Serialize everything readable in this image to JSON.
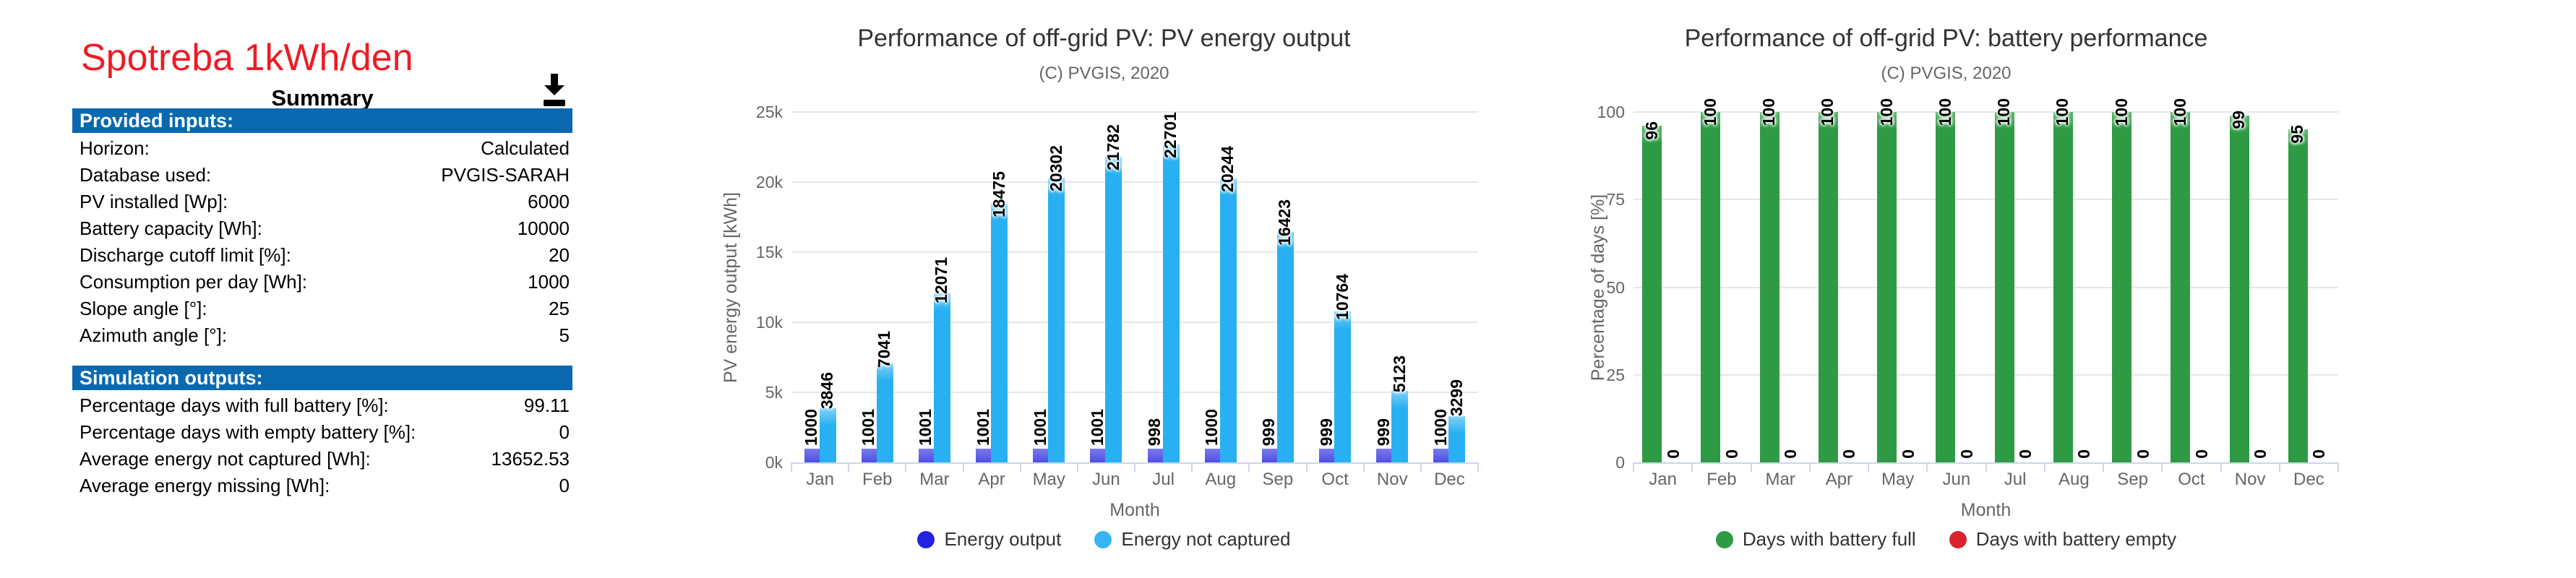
{
  "page": {
    "title": "Spotreba 1kWh/den",
    "title_color": "#ed1c24"
  },
  "summary_panel": {
    "title": "Summary",
    "download_icon": "download-icon",
    "header_bg": "#0a69ae",
    "sections": [
      {
        "header": "Provided inputs:",
        "rows": [
          {
            "label": "Horizon:",
            "value": "Calculated"
          },
          {
            "label": "Database used:",
            "value": "PVGIS-SARAH"
          },
          {
            "label": "PV installed [Wp]:",
            "value": "6000"
          },
          {
            "label": "Battery capacity [Wh]:",
            "value": "10000"
          },
          {
            "label": "Discharge cutoff limit [%]:",
            "value": "20"
          },
          {
            "label": "Consumption per day [Wh]:",
            "value": "1000"
          },
          {
            "label": "Slope angle [°]:",
            "value": "25"
          },
          {
            "label": "Azimuth angle [°]:",
            "value": "5"
          }
        ]
      },
      {
        "header": "Simulation outputs:",
        "rows": [
          {
            "label": "Percentage days with full battery [%]:",
            "value": "99.11"
          },
          {
            "label": "Percentage days with empty battery [%]:",
            "value": "0"
          },
          {
            "label": "Average energy not captured [Wh]:",
            "value": "13652.53"
          },
          {
            "label": "Average energy missing [Wh]:",
            "value": "0"
          }
        ]
      }
    ]
  },
  "chart_data": [
    {
      "type": "bar",
      "title": "Performance of off-grid PV: PV energy output",
      "subtitle": "(C) PVGIS, 2020",
      "categories": [
        "Jan",
        "Feb",
        "Mar",
        "Apr",
        "May",
        "Jun",
        "Jul",
        "Aug",
        "Sep",
        "Oct",
        "Nov",
        "Dec"
      ],
      "series": [
        {
          "name": "Energy output",
          "color": "#2222e0",
          "bar_top": "#7a7aef",
          "bar_bottom": "#4343dd",
          "values": [
            1000,
            1001,
            1001,
            1001,
            1001,
            1001,
            998,
            1000,
            999,
            999,
            999,
            1000
          ]
        },
        {
          "name": "Energy not captured",
          "color": "#38b4f4",
          "bar_top": "#7fd0f8",
          "bar_bottom": "#29b0f2",
          "values": [
            3846,
            7041,
            12071,
            18475,
            20302,
            21782,
            22701,
            20244,
            16423,
            10764,
            5123,
            3299
          ]
        }
      ],
      "xlabel": "Month",
      "ylabel": "PV energy output [kWh]",
      "ylim": [
        0,
        25000
      ],
      "ytick_values": [
        0,
        5000,
        10000,
        15000,
        20000,
        25000
      ],
      "ytick_labels": [
        "0k",
        "5k",
        "10k",
        "15k",
        "20k",
        "25k"
      ],
      "grid": true,
      "legend_position": "bottom",
      "data_labels_rotated": true
    },
    {
      "type": "bar",
      "title": "Performance of off-grid PV: battery performance",
      "subtitle": "(C) PVGIS, 2020",
      "categories": [
        "Jan",
        "Feb",
        "Mar",
        "Apr",
        "May",
        "Jun",
        "Jul",
        "Aug",
        "Sep",
        "Oct",
        "Nov",
        "Dec"
      ],
      "series": [
        {
          "name": "Days with battery full",
          "color": "#2e9b44",
          "bar_top": "#58b66b",
          "bar_bottom": "#2e9b44",
          "values": [
            96,
            100,
            100,
            100,
            100,
            100,
            100,
            100,
            100,
            100,
            99,
            95
          ]
        },
        {
          "name": "Days with battery empty",
          "color": "#d9222a",
          "bar_top": "#e4555b",
          "bar_bottom": "#d9222a",
          "values": [
            0,
            0,
            0,
            0,
            0,
            0,
            0,
            0,
            0,
            0,
            0,
            0
          ]
        }
      ],
      "xlabel": "Month",
      "ylabel": "Percentage of days [%]",
      "ylim": [
        0,
        100
      ],
      "ytick_values": [
        0,
        25,
        50,
        75,
        100
      ],
      "ytick_labels": [
        "0",
        "25",
        "50",
        "75",
        "100"
      ],
      "grid": true,
      "legend_position": "bottom",
      "data_labels_rotated": true
    }
  ]
}
